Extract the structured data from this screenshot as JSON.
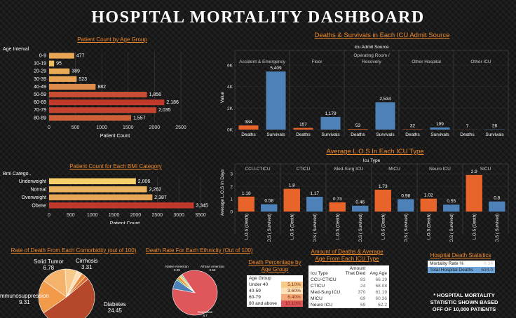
{
  "header": {
    "title": "HOSPITAL  MORTALITY  DASHBOARD"
  },
  "colors": {
    "orange": "#e8642a",
    "blue": "#4e81b8",
    "yellow": "#f3c460",
    "red": "#c0392b",
    "title": "#f08a2c"
  },
  "chart_data": [
    {
      "id": "age",
      "type": "bar",
      "orientation": "horizontal",
      "title": "Patient Count by Age Group",
      "row_header": "Age Interval",
      "xlabel": "Patient Count",
      "categories": [
        "0-9",
        "10-19",
        "20-29",
        "30-39",
        "40-49",
        "50-59",
        "60-69",
        "70-79",
        "80-89"
      ],
      "values": [
        477,
        95,
        389,
        523,
        882,
        1856,
        2186,
        2035,
        1557
      ],
      "xlim": [
        0,
        2500
      ],
      "xticks": [
        "0",
        "500",
        "1000",
        "1500",
        "2000",
        "2500"
      ],
      "color_scale": "yellow-to-red"
    },
    {
      "id": "icu_source",
      "type": "bar",
      "title": "Deaths & Survivals in Each ICU Admit Source",
      "group_header": "Icu Admit Source",
      "ylabel": "Value",
      "groups": [
        "Accident & Emergency",
        "Floor",
        "Operating Room / Recovery",
        "Other Hospital",
        "Other ICU"
      ],
      "series": [
        {
          "name": "Deaths",
          "values": [
            384,
            157,
            53,
            32,
            7
          ]
        },
        {
          "name": "Survivals",
          "values": [
            5409,
            1178,
            2534,
            199,
            26
          ]
        }
      ],
      "data_labels": [
        [
          "384",
          "5,409"
        ],
        [
          "157",
          "1,178"
        ],
        [
          "53",
          "2,534"
        ],
        [
          "32",
          "199"
        ],
        [
          "7",
          "26"
        ]
      ],
      "ylim": [
        0,
        6000
      ],
      "yticks": [
        "0K",
        "2K",
        "4K",
        "6K"
      ]
    },
    {
      "id": "bmi",
      "type": "bar",
      "orientation": "horizontal",
      "title": "Patient Count for Each BMI Category",
      "row_header": "Bmi Catego..",
      "xlabel": "Patient Count",
      "categories": [
        "Underweight",
        "Normal",
        "Overweight",
        "Obese"
      ],
      "values": [
        2006,
        2262,
        2387,
        3345
      ],
      "data_labels": [
        "2,006",
        "2,262",
        "2,387",
        "3,345"
      ],
      "xlim": [
        0,
        3500
      ],
      "xticks": [
        "0",
        "500",
        "1000",
        "1500",
        "2000",
        "2500",
        "3000",
        "3500"
      ]
    },
    {
      "id": "los",
      "type": "bar",
      "title": "Average L.O.S In Each ICU Type",
      "group_header": "Icu Type",
      "ylabel": "Average L.O.S In Days",
      "groups": [
        "CCU-CTICU",
        "CTICU",
        "Med-Surg ICU",
        "MICU",
        "Neuro ICU",
        "SICU"
      ],
      "series": [
        {
          "name": "L.O.S (Death)",
          "values": [
            1.18,
            1.8,
            0.73,
            1.73,
            1.02,
            2.9
          ]
        },
        {
          "name": "L.O.S ( Survived)",
          "values": [
            0.58,
            1.17,
            0.46,
            0.98,
            0.55,
            0.8
          ]
        }
      ],
      "ylim": [
        0,
        3
      ],
      "yticks": [
        "0",
        "1",
        "2",
        "3"
      ]
    },
    {
      "id": "comorbidity",
      "type": "pie",
      "title": "Rate of Death From Each Comorbidity (out of 100)",
      "slices": [
        {
          "label": "Diabetes",
          "value": 24.45,
          "color": "#b5472a"
        },
        {
          "label": "Immunosuppression",
          "value": 9.31,
          "color": "#f09a4a"
        },
        {
          "label": "Solid Tumor",
          "value": 6.78,
          "color": "#f5b26a"
        },
        {
          "label": "Cirrhosis",
          "value": 3.31,
          "color": "#f7c98b"
        },
        {
          "label": "",
          "value": 1.5,
          "color": "#fbe0b8"
        },
        {
          "label": "",
          "value": 1.2,
          "color": "#e98a3c"
        },
        {
          "label": "",
          "value": 1.0,
          "color": "#d9702e"
        }
      ],
      "printed_labels": [
        {
          "name": "Solid Tumor",
          "value": "6.78"
        },
        {
          "name": "Cirrhosis",
          "value": "3.31"
        },
        {
          "name": "mmunosuppression",
          "value": "9.31"
        },
        {
          "name": "Diabetes",
          "value": "24.45"
        }
      ]
    },
    {
      "id": "ethnicity",
      "type": "pie",
      "title": "Death Rate For Each Ethnicity (Out of 100)",
      "slices": [
        {
          "label": "Caucasian",
          "value": 6.7,
          "color": "#e0575b"
        },
        {
          "label": "African American",
          "value": 0.53,
          "color": "#4e81b8"
        },
        {
          "label": "Native American",
          "value": 0.09,
          "color": "#59a14f"
        },
        {
          "label": "",
          "value": 0.15,
          "color": "#f28e2b"
        },
        {
          "label": "",
          "value": 0.1,
          "color": "#edc948"
        },
        {
          "label": "",
          "value": 0.08,
          "color": "#76b7b2"
        }
      ],
      "printed_labels": [
        {
          "name": "Native American",
          "value": "0.09"
        },
        {
          "name": "African American",
          "value": "0.53"
        },
        {
          "name": "Caucasian",
          "value": "6.7"
        }
      ]
    },
    {
      "id": "death_pct_age",
      "type": "table",
      "title": "Death Percentage by Age Group",
      "header": "Age Group",
      "rows": [
        {
          "group": "Under 40",
          "value": "5.10%",
          "color": "#f7c98b"
        },
        {
          "group": "40-59",
          "value": "3.60%",
          "color": "#fbe0b8"
        },
        {
          "group": "60-79",
          "value": "6.40%",
          "color": "#f5a97a"
        },
        {
          "group": "80 and above",
          "value": "10.10%",
          "color": "#e0575b"
        }
      ]
    },
    {
      "id": "icu_deaths",
      "type": "table",
      "title": "Amount of Deaths & Average Age From Each ICU Type",
      "columns": [
        "Icu Type",
        "Amount That Died",
        "Avg Age"
      ],
      "rows": [
        [
          "CCU-CTICU",
          "83",
          "66.19"
        ],
        [
          "CTICU",
          "24",
          "68.08"
        ],
        [
          "Med-Surg ICU",
          "370",
          "61.19"
        ],
        [
          "MICU",
          "69",
          "60.36"
        ],
        [
          "Neuro ICU",
          "69",
          "62.2"
        ]
      ]
    },
    {
      "id": "hospital_stats",
      "type": "table",
      "title": "Hospital Death Statistics",
      "rows": [
        {
          "label": "Mortality Rate %",
          "value": "6.34"
        },
        {
          "label": "Total Hospital Deaths",
          "value": "634.0"
        }
      ]
    }
  ],
  "note": [
    "* HOSPITAL MORTALITY",
    "STATISTIC SHOWN BASED",
    "OFF OF 10,000 PATIENTS"
  ]
}
